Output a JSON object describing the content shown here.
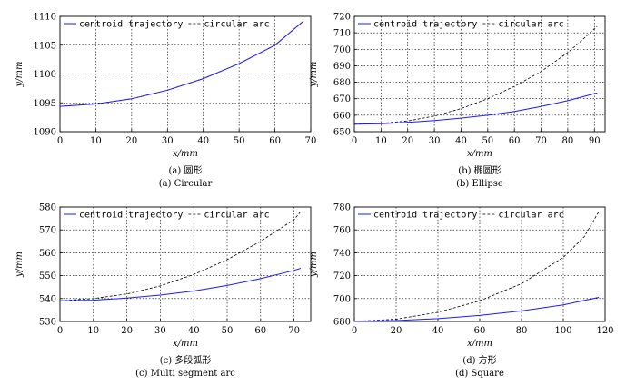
{
  "legend": {
    "centroid": "centroid trajectory",
    "arc": "circular arc"
  },
  "colors": {
    "centroid": "#1a1aff",
    "arc": "#000000",
    "grid": "#000000"
  },
  "chart_data": [
    {
      "type": "line",
      "caption_cn": "(a) 圆形",
      "caption_en": "(a) Circular",
      "xlabel": "x/mm",
      "ylabel": "y/mm",
      "xlim": [
        0,
        70
      ],
      "ylim": [
        1090,
        1110
      ],
      "xticks": [
        0,
        10,
        20,
        30,
        40,
        50,
        60,
        70
      ],
      "yticks": [
        1090,
        1095,
        1100,
        1105,
        1110
      ],
      "series": [
        {
          "name": "centroid trajectory",
          "style": "solid",
          "x": [
            0,
            10,
            20,
            30,
            40,
            50,
            60,
            68
          ],
          "y": [
            1094.4,
            1094.8,
            1095.7,
            1097.2,
            1099.2,
            1101.8,
            1105.0,
            1109.2
          ]
        },
        {
          "name": "circular arc",
          "style": "dashed",
          "x": [
            0,
            10,
            20,
            30,
            40,
            50,
            60,
            68
          ],
          "y": [
            1094.4,
            1094.8,
            1095.7,
            1097.2,
            1099.2,
            1101.8,
            1105.0,
            1109.2
          ]
        }
      ]
    },
    {
      "type": "line",
      "caption_cn": "(b) 椭圆形",
      "caption_en": "(b) Ellipse",
      "xlabel": "x/mm",
      "ylabel": "y/mm",
      "xlim": [
        0,
        94
      ],
      "ylim": [
        650,
        720
      ],
      "xticks": [
        0,
        10,
        20,
        30,
        40,
        50,
        60,
        70,
        80,
        90
      ],
      "yticks": [
        650,
        660,
        670,
        680,
        690,
        700,
        710,
        720
      ],
      "series": [
        {
          "name": "centroid trajectory",
          "style": "solid",
          "x": [
            0,
            10,
            20,
            30,
            40,
            50,
            60,
            70,
            80,
            91
          ],
          "y": [
            654.5,
            654.8,
            655.6,
            656.8,
            658.2,
            660.0,
            662.3,
            665.3,
            668.8,
            673.5
          ]
        },
        {
          "name": "circular arc",
          "style": "dashed",
          "x": [
            0,
            10,
            20,
            30,
            40,
            50,
            60,
            70,
            80,
            85,
            91
          ],
          "y": [
            654.5,
            655.0,
            656.5,
            659.5,
            664.0,
            670.0,
            677.5,
            686.5,
            698.0,
            705.0,
            714.0
          ]
        }
      ]
    },
    {
      "type": "line",
      "caption_cn": "(c) 多段弧形",
      "caption_en": "(c) Multi segment arc",
      "xlabel": "x/mm",
      "ylabel": "y/mm",
      "xlim": [
        0,
        75
      ],
      "ylim": [
        530,
        580
      ],
      "xticks": [
        0,
        10,
        20,
        30,
        40,
        50,
        60,
        70
      ],
      "yticks": [
        530,
        540,
        550,
        560,
        570,
        580
      ],
      "series": [
        {
          "name": "centroid trajectory",
          "style": "solid",
          "x": [
            0,
            10,
            20,
            30,
            40,
            50,
            60,
            70,
            72
          ],
          "y": [
            539.0,
            539.3,
            540.2,
            541.5,
            543.3,
            545.7,
            548.7,
            552.3,
            553.2
          ]
        },
        {
          "name": "circular arc",
          "style": "dashed",
          "x": [
            0,
            10,
            20,
            30,
            40,
            50,
            60,
            70,
            72
          ],
          "y": [
            539.0,
            540.0,
            542.0,
            545.5,
            550.5,
            557.0,
            565.0,
            574.5,
            578.0
          ]
        }
      ]
    },
    {
      "type": "line",
      "caption_cn": "(d) 方形",
      "caption_en": "(d) Square",
      "xlabel": "x/mm",
      "ylabel": "y/mm",
      "xlim": [
        0,
        120
      ],
      "ylim": [
        680,
        780
      ],
      "xticks": [
        0,
        20,
        40,
        60,
        80,
        100,
        120
      ],
      "yticks": [
        680,
        700,
        720,
        740,
        760,
        780
      ],
      "series": [
        {
          "name": "centroid trajectory",
          "style": "solid",
          "x": [
            0,
            20,
            40,
            60,
            80,
            100,
            117
          ],
          "y": [
            680.0,
            680.8,
            682.5,
            685.2,
            689.2,
            694.5,
            701.0
          ]
        },
        {
          "name": "circular arc",
          "style": "dashed",
          "x": [
            0,
            20,
            40,
            60,
            80,
            100,
            110,
            117
          ],
          "y": [
            680.0,
            682.0,
            688.0,
            698.0,
            713.0,
            736.0,
            754.0,
            776.0
          ]
        }
      ]
    }
  ]
}
